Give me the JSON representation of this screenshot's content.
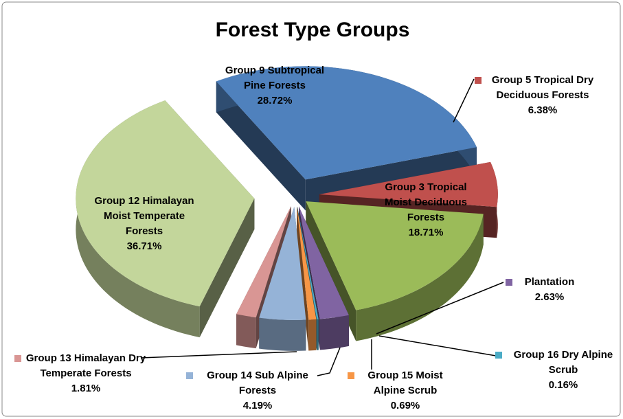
{
  "chart_data": {
    "type": "pie3d",
    "title": "Forest Type Groups",
    "categories": [
      "Group 9 Subtropical Pine Forests",
      "Group 5 Tropical Dry Deciduous Forests",
      "Group 3 Tropical Moist Deciduous Forests",
      "Plantation",
      "Group 16 Dry Alpine Scrub",
      "Group 15 Moist Alpine Scrub",
      "Group 14 Sub Alpine Forests",
      "Group 13 Himalayan Dry Temperate Forests",
      "Group 12 Himalayan Moist Temperate Forests"
    ],
    "values": [
      28.72,
      6.38,
      18.71,
      2.63,
      0.16,
      0.69,
      4.19,
      1.81,
      36.71
    ],
    "value_labels": [
      "28.72%",
      "6.38%",
      "18.71%",
      "2.63%",
      "0.16%",
      "0.69%",
      "4.19%",
      "1.81%",
      "36.71%"
    ],
    "colors": [
      "#4f81bd",
      "#c0504d",
      "#9bbb59",
      "#8064a2",
      "#4bacc6",
      "#f79646",
      "#95b3d7",
      "#d99694",
      "#c3d69b"
    ]
  }
}
